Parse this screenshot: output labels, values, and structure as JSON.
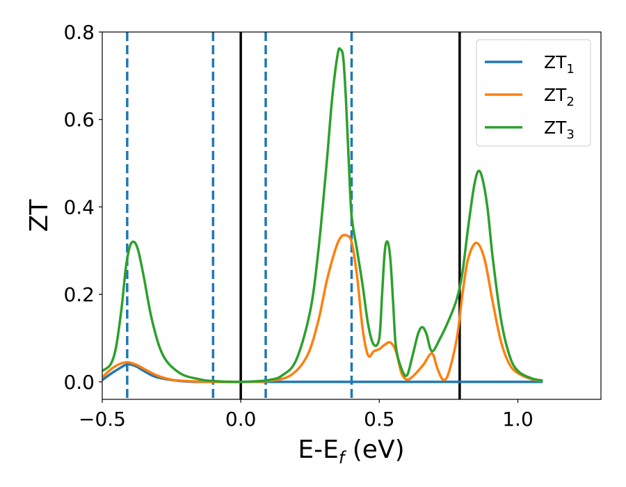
{
  "chart_data": {
    "type": "line",
    "xlabel": "E-E",
    "xlabel_sub": "f",
    "xlabel_unit": " (eV)",
    "ylabel": "ZT",
    "xlim": [
      -0.5,
      1.3
    ],
    "ylim": [
      -0.04,
      0.8
    ],
    "xticks": [
      -0.5,
      0.0,
      0.5,
      1.0
    ],
    "xtick_labels": [
      "−0.5",
      "0.0",
      "0.5",
      "1.0"
    ],
    "yticks": [
      0.0,
      0.2,
      0.4,
      0.6,
      0.8
    ],
    "ytick_labels": [
      "0.0",
      "0.2",
      "0.4",
      "0.6",
      "0.8"
    ],
    "legend_position": "top-right",
    "vlines_solid": [
      0.0,
      0.79
    ],
    "vlines_dashed": [
      -0.41,
      -0.1,
      0.09,
      0.4
    ],
    "series": [
      {
        "name": "ZT",
        "sub": "1",
        "color": "#1f77b4",
        "x": [
          -0.5,
          -0.47,
          -0.44,
          -0.41,
          -0.38,
          -0.35,
          -0.3,
          -0.2,
          -0.1,
          0.0,
          0.2,
          0.4,
          0.6,
          0.8,
          1.0,
          1.09
        ],
        "y": [
          0.004,
          0.018,
          0.03,
          0.04,
          0.036,
          0.025,
          0.01,
          0.001,
          0.0,
          0.0,
          0.0,
          0.0,
          0.0,
          0.0,
          0.0,
          0.0
        ]
      },
      {
        "name": "ZT",
        "sub": "2",
        "color": "#ff7f0e",
        "x": [
          -0.5,
          -0.47,
          -0.44,
          -0.41,
          -0.38,
          -0.35,
          -0.3,
          -0.25,
          -0.2,
          -0.1,
          0.0,
          0.1,
          0.18,
          0.24,
          0.28,
          0.31,
          0.34,
          0.36,
          0.38,
          0.4,
          0.42,
          0.44,
          0.46,
          0.48,
          0.5,
          0.52,
          0.54,
          0.56,
          0.58,
          0.6,
          0.62,
          0.64,
          0.66,
          0.69,
          0.71,
          0.73,
          0.75,
          0.78,
          0.8,
          0.82,
          0.85,
          0.88,
          0.91,
          0.94,
          0.97,
          1.0,
          1.05,
          1.09
        ],
        "y": [
          0.01,
          0.028,
          0.04,
          0.045,
          0.04,
          0.03,
          0.014,
          0.005,
          0.002,
          0.0,
          0.0,
          0.002,
          0.015,
          0.06,
          0.14,
          0.23,
          0.3,
          0.33,
          0.335,
          0.32,
          0.24,
          0.12,
          0.06,
          0.07,
          0.075,
          0.085,
          0.09,
          0.07,
          0.02,
          0.005,
          0.012,
          0.025,
          0.04,
          0.065,
          0.03,
          0.005,
          0.02,
          0.1,
          0.2,
          0.28,
          0.318,
          0.28,
          0.18,
          0.09,
          0.04,
          0.02,
          0.006,
          0.002
        ]
      },
      {
        "name": "ZT",
        "sub": "3",
        "color": "#2ca02c",
        "x": [
          -0.5,
          -0.47,
          -0.45,
          -0.43,
          -0.415,
          -0.4,
          -0.385,
          -0.37,
          -0.35,
          -0.32,
          -0.28,
          -0.22,
          -0.15,
          -0.1,
          0.0,
          0.1,
          0.15,
          0.2,
          0.25,
          0.28,
          0.31,
          0.33,
          0.35,
          0.36,
          0.37,
          0.38,
          0.39,
          0.4,
          0.42,
          0.44,
          0.46,
          0.48,
          0.5,
          0.51,
          0.52,
          0.53,
          0.54,
          0.55,
          0.56,
          0.58,
          0.6,
          0.62,
          0.64,
          0.655,
          0.67,
          0.69,
          0.72,
          0.75,
          0.78,
          0.8,
          0.82,
          0.84,
          0.855,
          0.87,
          0.89,
          0.91,
          0.94,
          0.97,
          1.0,
          1.05,
          1.09
        ],
        "y": [
          0.025,
          0.04,
          0.08,
          0.17,
          0.26,
          0.31,
          0.32,
          0.3,
          0.24,
          0.14,
          0.06,
          0.02,
          0.006,
          0.002,
          0.0,
          0.004,
          0.015,
          0.05,
          0.16,
          0.3,
          0.5,
          0.65,
          0.75,
          0.76,
          0.74,
          0.64,
          0.5,
          0.38,
          0.3,
          0.22,
          0.13,
          0.085,
          0.1,
          0.2,
          0.3,
          0.32,
          0.28,
          0.18,
          0.08,
          0.03,
          0.015,
          0.06,
          0.11,
          0.125,
          0.11,
          0.07,
          0.1,
          0.14,
          0.19,
          0.25,
          0.35,
          0.44,
          0.48,
          0.47,
          0.4,
          0.28,
          0.14,
          0.06,
          0.025,
          0.008,
          0.003
        ]
      }
    ]
  }
}
